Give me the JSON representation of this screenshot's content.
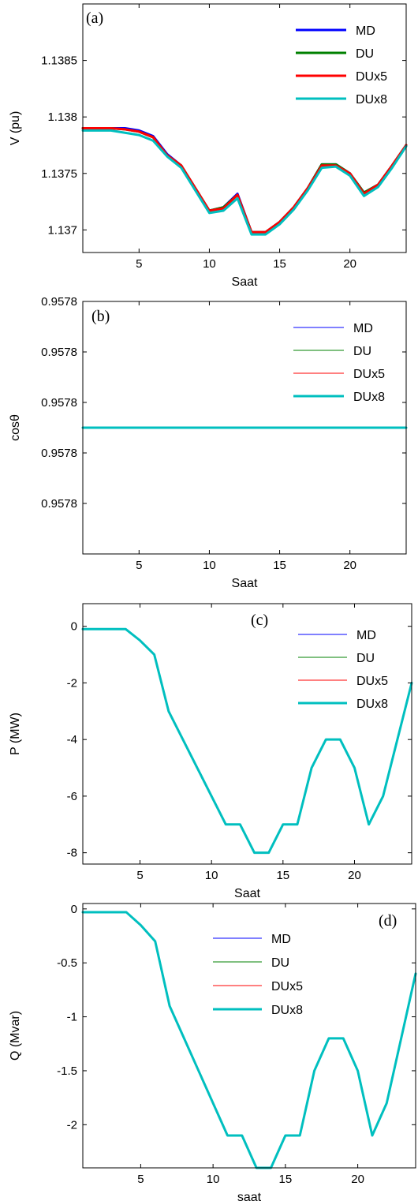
{
  "chart_data": [
    {
      "type": "line",
      "panel_label": "(a)",
      "xlabel": "Saat",
      "ylabel": "V (pu)",
      "xlim": [
        1,
        24
      ],
      "ylim": [
        1.1368,
        1.139
      ],
      "xticks": [
        5,
        10,
        15,
        20
      ],
      "yticks": [
        1.137,
        1.1375,
        1.138,
        1.1385
      ],
      "ytick_labels": [
        "1.137",
        "1.1375",
        "1.138",
        "1.1385"
      ],
      "legend_position": "top-right",
      "x": [
        1,
        2,
        3,
        4,
        5,
        6,
        7,
        8,
        9,
        10,
        11,
        12,
        13,
        14,
        15,
        16,
        17,
        18,
        19,
        20,
        21,
        22,
        23,
        24
      ],
      "series": [
        {
          "name": "MD",
          "color": "#0000ff",
          "width": 3,
          "values": [
            1.1379,
            1.1379,
            1.1379,
            1.1379,
            1.13788,
            1.13783,
            1.13767,
            1.13757,
            1.13737,
            1.13717,
            1.1372,
            1.13732,
            1.13698,
            1.13698,
            1.13707,
            1.1372,
            1.13737,
            1.13758,
            1.13758,
            1.1375,
            1.13733,
            1.1374,
            1.13757,
            1.13775
          ]
        },
        {
          "name": "DU",
          "color": "#008000",
          "width": 3,
          "values": [
            1.1379,
            1.1379,
            1.1379,
            1.13789,
            1.13787,
            1.13782,
            1.13766,
            1.13757,
            1.13737,
            1.13717,
            1.1372,
            1.13731,
            1.13698,
            1.13698,
            1.13707,
            1.1372,
            1.13737,
            1.13758,
            1.13758,
            1.1375,
            1.13733,
            1.1374,
            1.13757,
            1.13775
          ]
        },
        {
          "name": "DUx5",
          "color": "#ff0000",
          "width": 3,
          "values": [
            1.1379,
            1.1379,
            1.1379,
            1.13789,
            1.13787,
            1.13782,
            1.13766,
            1.13757,
            1.13737,
            1.13717,
            1.13719,
            1.13731,
            1.13698,
            1.13698,
            1.13707,
            1.1372,
            1.13737,
            1.13757,
            1.13757,
            1.1375,
            1.13732,
            1.1374,
            1.13757,
            1.13775
          ]
        },
        {
          "name": "DUx8",
          "color": "#00bfbf",
          "width": 3,
          "values": [
            1.13788,
            1.13788,
            1.13788,
            1.13786,
            1.13784,
            1.13779,
            1.13765,
            1.13755,
            1.13735,
            1.13715,
            1.13717,
            1.13728,
            1.13696,
            1.13696,
            1.13705,
            1.13718,
            1.13735,
            1.13755,
            1.13756,
            1.13748,
            1.1373,
            1.13738,
            1.13755,
            1.13774
          ]
        }
      ]
    },
    {
      "type": "line",
      "panel_label": "(b)",
      "xlabel": "Saat",
      "ylabel": "cosθ",
      "xlim": [
        1,
        24
      ],
      "ylim": [
        0,
        1
      ],
      "xticks": [
        5,
        10,
        15,
        20,
        24
      ],
      "xtick_labels": [
        "5",
        "10",
        "15",
        "20",
        ""
      ],
      "yticks": [
        0.2,
        0.4,
        0.6,
        0.8,
        1.0
      ],
      "ytick_labels": [
        "0.9578",
        "0.9578",
        "0.9578",
        "0.9578",
        "0.9578"
      ],
      "legend_position": "top-right",
      "x": [
        1,
        24
      ],
      "series": [
        {
          "name": "MD",
          "color": "#0000ff",
          "width": 1,
          "values": [
            0.5,
            0.5
          ]
        },
        {
          "name": "DU",
          "color": "#008000",
          "width": 1,
          "values": [
            0.5,
            0.5
          ]
        },
        {
          "name": "DUx5",
          "color": "#ff0000",
          "width": 1,
          "values": [
            0.5,
            0.5
          ]
        },
        {
          "name": "DUx8",
          "color": "#00bfbf",
          "width": 3,
          "values": [
            0.5,
            0.5
          ]
        }
      ]
    },
    {
      "type": "line",
      "panel_label": "(c)",
      "xlabel": "Saat",
      "ylabel": "P (MW)",
      "xlim": [
        1,
        24
      ],
      "ylim": [
        -8.4,
        0.8
      ],
      "xticks": [
        5,
        10,
        15,
        20
      ],
      "yticks": [
        0,
        -2,
        -4,
        -6,
        -8
      ],
      "ytick_labels": [
        "0",
        "-2",
        "-4",
        "-6",
        "-8"
      ],
      "legend_position": "top-right",
      "x": [
        1,
        2,
        3,
        4,
        5,
        6,
        7,
        8,
        9,
        10,
        11,
        12,
        13,
        14,
        15,
        16,
        17,
        18,
        19,
        20,
        21,
        22,
        23,
        24
      ],
      "series": [
        {
          "name": "MD",
          "color": "#0000ff",
          "width": 1,
          "values": [
            -0.1,
            -0.1,
            -0.1,
            -0.1,
            -0.5,
            -1,
            -3,
            -4,
            -5,
            -6,
            -7,
            -7,
            -8,
            -8,
            -7,
            -7,
            -5,
            -4,
            -4,
            -5,
            -7,
            -6,
            -4,
            -2
          ]
        },
        {
          "name": "DU",
          "color": "#008000",
          "width": 1,
          "values": [
            -0.1,
            -0.1,
            -0.1,
            -0.1,
            -0.5,
            -1,
            -3,
            -4,
            -5,
            -6,
            -7,
            -7,
            -8,
            -8,
            -7,
            -7,
            -5,
            -4,
            -4,
            -5,
            -7,
            -6,
            -4,
            -2
          ]
        },
        {
          "name": "DUx5",
          "color": "#ff0000",
          "width": 1,
          "values": [
            -0.1,
            -0.1,
            -0.1,
            -0.1,
            -0.5,
            -1,
            -3,
            -4,
            -5,
            -6,
            -7,
            -7,
            -8,
            -8,
            -7,
            -7,
            -5,
            -4,
            -4,
            -5,
            -7,
            -6,
            -4,
            -2
          ]
        },
        {
          "name": "DUx8",
          "color": "#00bfbf",
          "width": 3,
          "values": [
            -0.1,
            -0.1,
            -0.1,
            -0.1,
            -0.5,
            -1,
            -3,
            -4,
            -5,
            -6,
            -7,
            -7,
            -8,
            -8,
            -7,
            -7,
            -5,
            -4,
            -4,
            -5,
            -7,
            -6,
            -4,
            -2
          ]
        }
      ]
    },
    {
      "type": "line",
      "panel_label": "(d)",
      "xlabel": "saat",
      "ylabel": "Q (Mvar)",
      "xlim": [
        1,
        24
      ],
      "ylim": [
        -2.4,
        0.05
      ],
      "xticks": [
        5,
        10,
        15,
        20
      ],
      "yticks": [
        0,
        -0.5,
        -1,
        -1.5,
        -2
      ],
      "ytick_labels": [
        "0",
        "-0.5",
        "-1",
        "-1.5",
        "-2"
      ],
      "legend_position": "top-center",
      "x": [
        1,
        2,
        3,
        4,
        5,
        6,
        7,
        8,
        9,
        10,
        11,
        12,
        13,
        14,
        15,
        16,
        17,
        18,
        19,
        20,
        21,
        22,
        23,
        24
      ],
      "series": [
        {
          "name": "MD",
          "color": "#0000ff",
          "width": 1,
          "values": [
            -0.03,
            -0.03,
            -0.03,
            -0.03,
            -0.15,
            -0.3,
            -0.9,
            -1.2,
            -1.5,
            -1.8,
            -2.1,
            -2.1,
            -2.4,
            -2.4,
            -2.1,
            -2.1,
            -1.5,
            -1.2,
            -1.2,
            -1.5,
            -2.1,
            -1.8,
            -1.2,
            -0.6
          ]
        },
        {
          "name": "DU",
          "color": "#008000",
          "width": 1,
          "values": [
            -0.03,
            -0.03,
            -0.03,
            -0.03,
            -0.15,
            -0.3,
            -0.9,
            -1.2,
            -1.5,
            -1.8,
            -2.1,
            -2.1,
            -2.4,
            -2.4,
            -2.1,
            -2.1,
            -1.5,
            -1.2,
            -1.2,
            -1.5,
            -2.1,
            -1.8,
            -1.2,
            -0.6
          ]
        },
        {
          "name": "DUx5",
          "color": "#ff0000",
          "width": 1,
          "values": [
            -0.03,
            -0.03,
            -0.03,
            -0.03,
            -0.15,
            -0.3,
            -0.9,
            -1.2,
            -1.5,
            -1.8,
            -2.1,
            -2.1,
            -2.4,
            -2.4,
            -2.1,
            -2.1,
            -1.5,
            -1.2,
            -1.2,
            -1.5,
            -2.1,
            -1.8,
            -1.2,
            -0.6
          ]
        },
        {
          "name": "DUx8",
          "color": "#00bfbf",
          "width": 3,
          "values": [
            -0.03,
            -0.03,
            -0.03,
            -0.03,
            -0.15,
            -0.3,
            -0.9,
            -1.2,
            -1.5,
            -1.8,
            -2.1,
            -2.1,
            -2.4,
            -2.4,
            -2.1,
            -2.1,
            -1.5,
            -1.2,
            -1.2,
            -1.5,
            -2.1,
            -1.8,
            -1.2,
            -0.6
          ]
        }
      ]
    }
  ]
}
